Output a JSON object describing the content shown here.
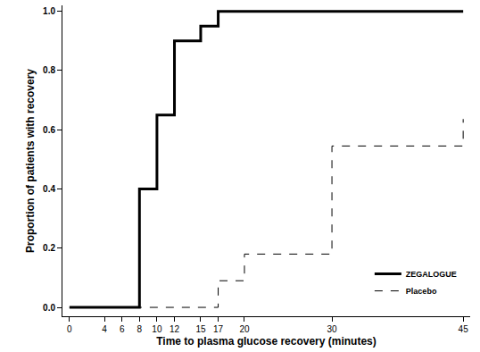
{
  "chart_data": {
    "type": "line",
    "x_label": "Time to plasma glucose recovery (minutes)",
    "y_label": "Proportion of patients with recovery",
    "series": [
      {
        "name": "ZEGALOGUE",
        "color": "#000000",
        "line_style": "solid",
        "x": [
          0,
          8,
          10,
          12,
          15,
          17,
          45
        ],
        "values": [
          0,
          0.4,
          0.65,
          0.9,
          0.95,
          1.0,
          1.0
        ]
      },
      {
        "name": "Placebo",
        "color": "#000000",
        "line_style": "dash",
        "x": [
          0,
          17,
          20,
          30,
          45
        ],
        "values": [
          0,
          0.09,
          0.18,
          0.545,
          0.636
        ]
      }
    ],
    "xlim": [
      -0.8,
      45.8
    ],
    "xticks": [
      0,
      4,
      6,
      8,
      10,
      12,
      15,
      17,
      20,
      30,
      45
    ],
    "ylim": [
      -0.03,
      1.02
    ],
    "yticks": [
      {
        "value": 0,
        "label": "0.0"
      },
      {
        "value": 0.2,
        "label": "0.2"
      },
      {
        "value": 0.4,
        "label": "0.4"
      },
      {
        "value": 0.6,
        "label": "0.6"
      },
      {
        "value": 0.8,
        "label": "0.8"
      },
      {
        "value": 1.0,
        "label": "1.0"
      }
    ],
    "grid": false,
    "legend": "lower right"
  }
}
